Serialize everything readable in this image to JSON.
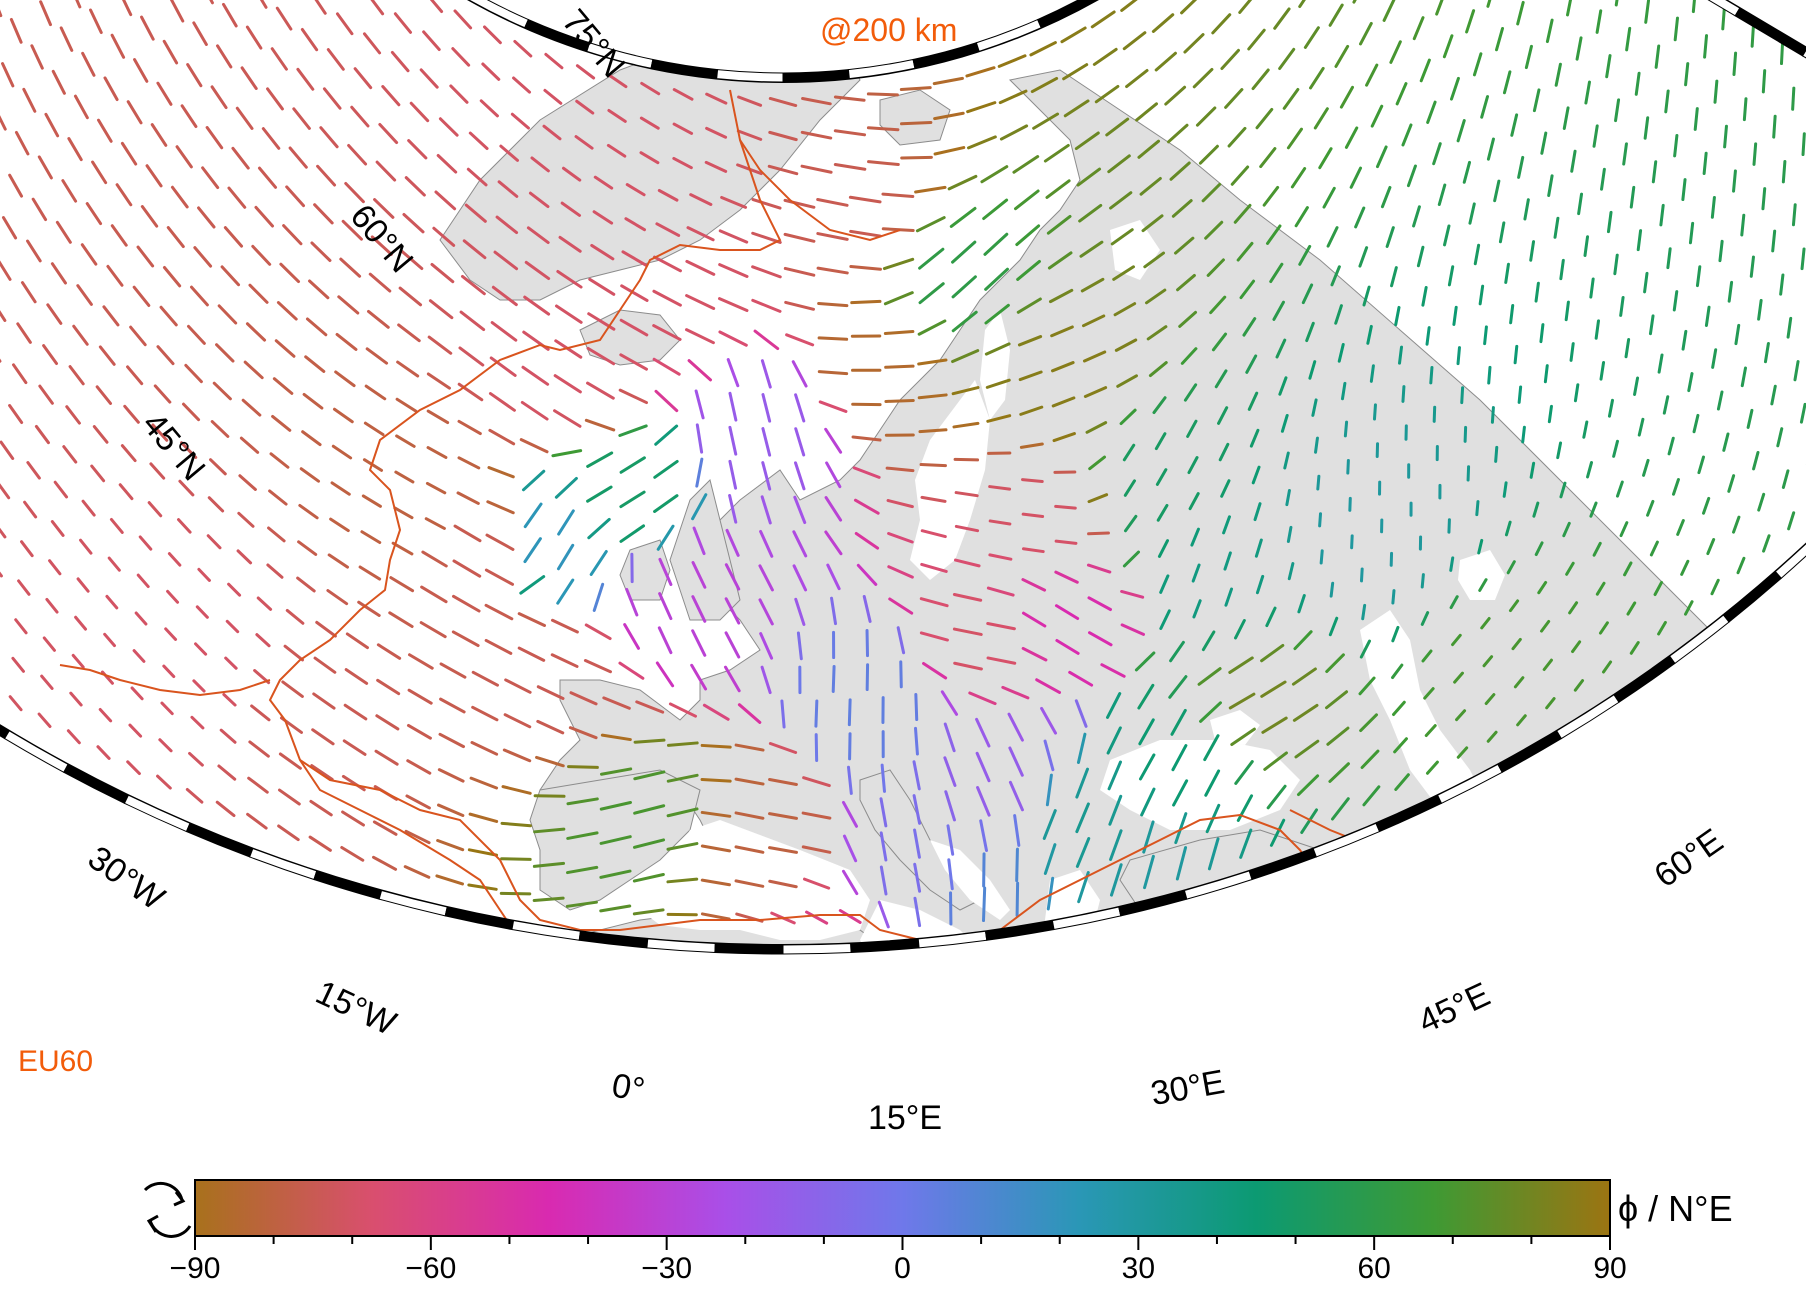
{
  "map": {
    "depth_label": "@200 km",
    "model_label": "EU60",
    "accent_color": "#f25c0a",
    "plate_boundary_color": "#d9541e",
    "land_color": "#e0e0e0",
    "coast_color": "#8c8c8c",
    "latitude_labels": [
      "75°N",
      "60°N",
      "45°N"
    ],
    "longitude_labels": [
      "30°W",
      "15°W",
      "0°",
      "15°E",
      "30°E",
      "45°E",
      "60°E"
    ],
    "frame_style": "alternating black/white fancy frame"
  },
  "colorbar": {
    "title": "ϕ / N°E",
    "cyclic_icon": "cyclic-arrows-icon",
    "tick_labels": [
      "−90",
      "−60",
      "−30",
      "0",
      "30",
      "60",
      "90"
    ],
    "range": [
      -90,
      90
    ],
    "palette": [
      "#a8711c",
      "#d94f6e",
      "#d92ab0",
      "#a94fe8",
      "#6f78ea",
      "#2a97b6",
      "#0c9a72",
      "#3e9a34",
      "#9c7412"
    ]
  }
}
